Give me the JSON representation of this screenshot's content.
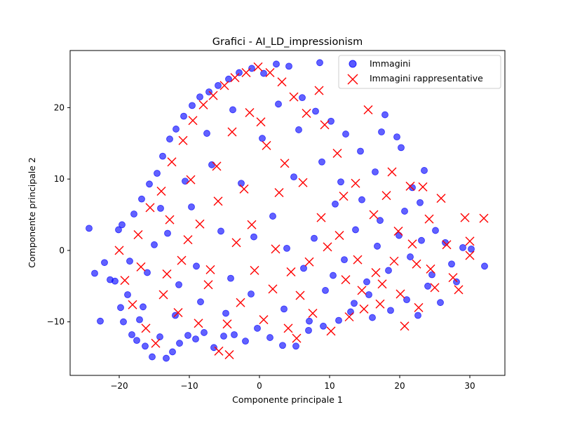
{
  "chart_data": {
    "type": "scatter",
    "title": "Grafici - AI_LD_impressionism",
    "xlabel": "Componente principale 1",
    "ylabel": "Componente principale 2",
    "xlim": [
      -27,
      35
    ],
    "ylim": [
      -17.5,
      28
    ],
    "xticks": [
      -20,
      -10,
      0,
      10,
      20,
      30
    ],
    "yticks": [
      -10,
      0,
      10,
      20
    ],
    "xtick_labels": [
      "−20",
      "−10",
      "0",
      "10",
      "20",
      "30"
    ],
    "ytick_labels": [
      "−10",
      "0",
      "10",
      "20"
    ],
    "grid": false,
    "legend_position": "top-right",
    "series": [
      {
        "name": "Immagini",
        "marker": "circle",
        "color": "#0000ff",
        "points": [
          [
            -24.3,
            3.1
          ],
          [
            -23.5,
            -3.2
          ],
          [
            -22.7,
            -9.9
          ],
          [
            -22.1,
            -1.7
          ],
          [
            -21.3,
            -4.1
          ],
          [
            -20.6,
            -4.3
          ],
          [
            -20.1,
            2.9
          ],
          [
            -19.8,
            -8.0
          ],
          [
            -19.6,
            3.6
          ],
          [
            -19.4,
            -10.0
          ],
          [
            -18.8,
            -6.2
          ],
          [
            -18.2,
            -11.8
          ],
          [
            -17.9,
            5.1
          ],
          [
            -17.5,
            -12.6
          ],
          [
            -17.1,
            -9.7
          ],
          [
            -16.8,
            7.2
          ],
          [
            -16.3,
            -13.4
          ],
          [
            -16.0,
            -3.1
          ],
          [
            -15.7,
            9.3
          ],
          [
            -15.3,
            -14.9
          ],
          [
            -14.6,
            10.8
          ],
          [
            -14.2,
            -12.1
          ],
          [
            -13.8,
            13.2
          ],
          [
            -13.3,
            -15.1
          ],
          [
            -12.8,
            15.6
          ],
          [
            -12.4,
            -14.2
          ],
          [
            -11.9,
            17.0
          ],
          [
            -11.4,
            -13.0
          ],
          [
            -10.8,
            18.8
          ],
          [
            -10.2,
            -11.9
          ],
          [
            -9.6,
            20.3
          ],
          [
            -9.1,
            -12.4
          ],
          [
            -8.5,
            21.5
          ],
          [
            -7.9,
            -11.5
          ],
          [
            -7.2,
            22.2
          ],
          [
            -6.5,
            -13.6
          ],
          [
            -5.9,
            23.1
          ],
          [
            -5.1,
            -12.0
          ],
          [
            -4.4,
            24.0
          ],
          [
            -3.6,
            -11.8
          ],
          [
            -2.9,
            24.9
          ],
          [
            -2.0,
            -12.7
          ],
          [
            -1.1,
            25.5
          ],
          [
            -0.3,
            -10.9
          ],
          [
            0.6,
            24.8
          ],
          [
            1.5,
            -12.2
          ],
          [
            2.4,
            26.1
          ],
          [
            3.3,
            -13.3
          ],
          [
            4.2,
            25.8
          ],
          [
            5.2,
            -13.4
          ],
          [
            6.1,
            21.4
          ],
          [
            7.0,
            -11.2
          ],
          [
            8.0,
            19.5
          ],
          [
            8.6,
            26.3
          ],
          [
            9.1,
            -10.6
          ],
          [
            10.2,
            18.1
          ],
          [
            11.3,
            -9.8
          ],
          [
            12.3,
            16.3
          ],
          [
            13.5,
            -7.4
          ],
          [
            14.4,
            13.9
          ],
          [
            15.6,
            -6.2
          ],
          [
            16.5,
            11.0
          ],
          [
            17.4,
            16.6
          ],
          [
            17.9,
            19.0
          ],
          [
            18.7,
            -8.4
          ],
          [
            19.6,
            15.9
          ],
          [
            20.2,
            14.4
          ],
          [
            21.0,
            -6.9
          ],
          [
            21.8,
            8.8
          ],
          [
            22.6,
            -9.1
          ],
          [
            23.5,
            11.2
          ],
          [
            24.0,
            -5.0
          ],
          [
            25.1,
            2.8
          ],
          [
            25.8,
            -7.3
          ],
          [
            26.5,
            1.1
          ],
          [
            27.4,
            -1.9
          ],
          [
            28.1,
            -4.4
          ],
          [
            29.0,
            0.4
          ],
          [
            30.2,
            0.2
          ],
          [
            32.1,
            -2.2
          ],
          [
            -13.1,
            2.4
          ],
          [
            -11.5,
            -4.8
          ],
          [
            -9.7,
            6.1
          ],
          [
            -8.4,
            -7.2
          ],
          [
            -6.8,
            12.0
          ],
          [
            -5.5,
            2.7
          ],
          [
            -4.1,
            -3.9
          ],
          [
            -2.6,
            9.4
          ],
          [
            -1.2,
            -6.1
          ],
          [
            0.4,
            15.7
          ],
          [
            1.9,
            4.8
          ],
          [
            3.5,
            -8.2
          ],
          [
            4.9,
            10.3
          ],
          [
            6.3,
            -2.5
          ],
          [
            7.8,
            1.7
          ],
          [
            9.4,
            -5.6
          ],
          [
            10.8,
            6.5
          ],
          [
            12.1,
            -1.3
          ],
          [
            13.7,
            2.9
          ],
          [
            15.3,
            -4.4
          ],
          [
            16.8,
            0.6
          ],
          [
            18.4,
            -2.8
          ],
          [
            19.9,
            2.1
          ],
          [
            21.5,
            -0.9
          ],
          [
            23.1,
            1.4
          ],
          [
            24.6,
            -3.4
          ],
          [
            -15.0,
            0.8
          ],
          [
            -16.6,
            -7.9
          ],
          [
            -12.0,
            -9.1
          ],
          [
            -10.6,
            9.7
          ],
          [
            -7.5,
            16.4
          ],
          [
            -3.8,
            19.7
          ],
          [
            2.7,
            20.5
          ],
          [
            5.6,
            16.9
          ],
          [
            8.9,
            12.4
          ],
          [
            11.6,
            9.6
          ],
          [
            14.6,
            7.1
          ],
          [
            17.2,
            4.2
          ],
          [
            20.7,
            5.5
          ],
          [
            22.9,
            6.7
          ],
          [
            -18.5,
            -1.5
          ],
          [
            -14.1,
            5.9
          ],
          [
            -9.0,
            -2.2
          ],
          [
            -4.8,
            -8.8
          ],
          [
            -0.8,
            1.9
          ],
          [
            3.9,
            0.3
          ],
          [
            7.1,
            -9.9
          ],
          [
            10.5,
            -3.5
          ],
          [
            13.0,
            -8.6
          ],
          [
            16.1,
            -9.4
          ]
        ]
      },
      {
        "name": "Immagini rappresentative",
        "marker": "x",
        "color": "#ff0000",
        "points": [
          [
            -20.0,
            0.0
          ],
          [
            -19.2,
            -4.2
          ],
          [
            -18.1,
            -7.6
          ],
          [
            -17.3,
            2.2
          ],
          [
            -16.2,
            -10.9
          ],
          [
            -15.6,
            6.0
          ],
          [
            -14.8,
            -13.0
          ],
          [
            -14.0,
            8.3
          ],
          [
            -13.2,
            -3.3
          ],
          [
            -12.5,
            12.4
          ],
          [
            -11.6,
            -8.7
          ],
          [
            -10.9,
            15.4
          ],
          [
            -10.2,
            1.5
          ],
          [
            -9.5,
            18.2
          ],
          [
            -8.7,
            -10.2
          ],
          [
            -8.0,
            20.4
          ],
          [
            -7.3,
            -4.8
          ],
          [
            -6.6,
            21.7
          ],
          [
            -5.8,
            -14.1
          ],
          [
            -5.0,
            23.1
          ],
          [
            -4.3,
            -14.6
          ],
          [
            -3.5,
            24.2
          ],
          [
            -2.7,
            -7.3
          ],
          [
            -1.9,
            24.9
          ],
          [
            -1.1,
            3.6
          ],
          [
            -0.2,
            25.7
          ],
          [
            0.6,
            -9.7
          ],
          [
            1.5,
            24.9
          ],
          [
            2.3,
            0.2
          ],
          [
            3.2,
            23.6
          ],
          [
            4.1,
            -10.9
          ],
          [
            4.9,
            21.5
          ],
          [
            5.8,
            -6.3
          ],
          [
            6.7,
            19.2
          ],
          [
            7.6,
            -8.8
          ],
          [
            8.5,
            22.4
          ],
          [
            9.3,
            17.6
          ],
          [
            10.2,
            -11.3
          ],
          [
            11.1,
            13.6
          ],
          [
            12.0,
            7.6
          ],
          [
            12.8,
            -9.3
          ],
          [
            13.7,
            9.4
          ],
          [
            14.6,
            -5.6
          ],
          [
            15.5,
            19.7
          ],
          [
            16.3,
            5.0
          ],
          [
            17.2,
            -7.5
          ],
          [
            18.1,
            7.7
          ],
          [
            18.9,
            11.0
          ],
          [
            19.8,
            2.7
          ],
          [
            20.7,
            -10.6
          ],
          [
            21.5,
            9.0
          ],
          [
            22.4,
            -1.9
          ],
          [
            23.3,
            8.9
          ],
          [
            24.2,
            4.4
          ],
          [
            25.0,
            -5.2
          ],
          [
            25.9,
            7.3
          ],
          [
            26.7,
            0.8
          ],
          [
            27.6,
            -3.8
          ],
          [
            28.4,
            -5.5
          ],
          [
            29.3,
            4.6
          ],
          [
            30.0,
            1.3
          ],
          [
            30.0,
            -0.7
          ],
          [
            32.0,
            4.5
          ],
          [
            -6.1,
            11.8
          ],
          [
            -3.9,
            16.6
          ],
          [
            -1.4,
            19.3
          ],
          [
            1.0,
            14.7
          ],
          [
            3.6,
            12.2
          ],
          [
            6.2,
            9.5
          ],
          [
            8.8,
            4.6
          ],
          [
            11.4,
            2.1
          ],
          [
            14.0,
            -1.3
          ],
          [
            16.6,
            -3.1
          ],
          [
            19.2,
            -1.5
          ],
          [
            21.8,
            0.9
          ],
          [
            24.4,
            -2.6
          ],
          [
            -13.7,
            -6.2
          ],
          [
            -11.1,
            -1.4
          ],
          [
            -8.5,
            3.7
          ],
          [
            -5.9,
            6.9
          ],
          [
            -3.3,
            1.1
          ],
          [
            -0.7,
            -2.8
          ],
          [
            1.9,
            -5.4
          ],
          [
            4.5,
            -3.0
          ],
          [
            7.1,
            -1.6
          ],
          [
            9.7,
            0.5
          ],
          [
            12.3,
            -4.1
          ],
          [
            14.9,
            -8.2
          ],
          [
            17.5,
            -4.7
          ],
          [
            20.1,
            -6.1
          ],
          [
            22.7,
            -8.0
          ],
          [
            -16.9,
            -2.3
          ],
          [
            -12.8,
            4.3
          ],
          [
            -9.8,
            9.9
          ],
          [
            -7.0,
            -2.7
          ],
          [
            -4.6,
            -10.3
          ],
          [
            -2.2,
            8.6
          ],
          [
            0.2,
            18.0
          ],
          [
            2.8,
            8.1
          ],
          [
            5.3,
            -12.3
          ]
        ]
      }
    ]
  }
}
